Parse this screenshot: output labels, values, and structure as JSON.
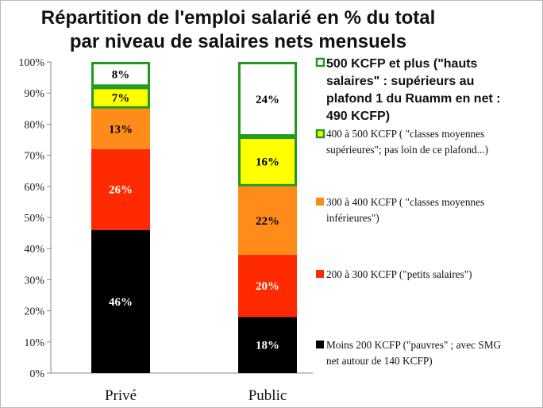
{
  "chart_data": {
    "type": "bar",
    "stacked": true,
    "title": "Répartition de l'emploi salarié en % du total par niveau de salaires nets mensuels",
    "title_lines": [
      "Répartition de l'emploi salarié en % du total",
      "par niveau de salaires nets mensuels"
    ],
    "categories": [
      "Privé",
      "Public"
    ],
    "ylim": [
      0,
      100
    ],
    "yticks": [
      0,
      10,
      20,
      30,
      40,
      50,
      60,
      70,
      80,
      90,
      100
    ],
    "ytick_suffix": "%",
    "series": [
      {
        "name": "Moins 200 KCFP (\"pauvres\" ; avec SMG net autour de 140 KCFP)",
        "legend_lines": [
          "Moins 200  KCFP (\"pauvres\" ; avec SMG",
          "net autour de 140 KCFP)"
        ],
        "values": [
          46,
          18
        ],
        "labels": [
          "46%",
          "18%"
        ],
        "color": "#000000",
        "label_color": "#ffffff",
        "outlined": false,
        "legend_bold": false
      },
      {
        "name": "200 à 300 KCFP (\"petits salaires\")",
        "legend_lines": [
          "200 à 300 KCFP (\"petits salaires\")"
        ],
        "values": [
          26,
          20
        ],
        "labels": [
          "26%",
          "20%"
        ],
        "color": "#ff2a00",
        "label_color": "#ffffff",
        "outlined": false,
        "legend_bold": false
      },
      {
        "name": "300 à 400 KCFP ( \"classes moyennes inférieures\")",
        "legend_lines": [
          "300 à 400 KCFP  ( \"classes moyennes",
          "inférieures\")"
        ],
        "values": [
          13,
          22
        ],
        "labels": [
          "13%",
          "22%"
        ],
        "color": "#ff8c1a",
        "label_color": "#000000",
        "outlined": false,
        "legend_bold": false
      },
      {
        "name": "400 à 500 KCFP ( \"classes moyennes supérieures\"; pas loin de ce plafond...)",
        "legend_lines": [
          "400 à 500 KCFP ( \"classes moyennes",
          "supérieures\"; pas loin de ce plafond...)"
        ],
        "values": [
          7,
          16
        ],
        "labels": [
          "7%",
          "16%"
        ],
        "color": "#ffff00",
        "label_color": "#000000",
        "outlined": true,
        "legend_bold": false
      },
      {
        "name": "500 KCFP et plus (\"hauts salaires\" : supérieurs au plafond 1 du Ruamm en net : 490 KCFP)",
        "legend_lines": [
          "500 KCFP et plus  (\"hauts",
          "salaires\" : supérieurs au",
          "plafond 1 du Ruamm en net :",
          "490 KCFP)"
        ],
        "values": [
          8,
          24
        ],
        "labels": [
          "8%",
          "24%"
        ],
        "color": "#ffffff",
        "label_color": "#000000",
        "outlined": true,
        "legend_bold": true
      }
    ],
    "outline_color": "#1f9a1f",
    "legend_position": "right"
  }
}
